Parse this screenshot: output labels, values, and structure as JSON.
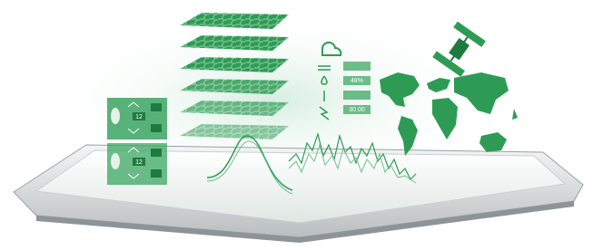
{
  "left_panels": [
    {
      "value": "12"
    },
    {
      "value": "12"
    }
  ],
  "weather_panel": {
    "rows": [
      "48%",
      "30.00"
    ]
  }
}
